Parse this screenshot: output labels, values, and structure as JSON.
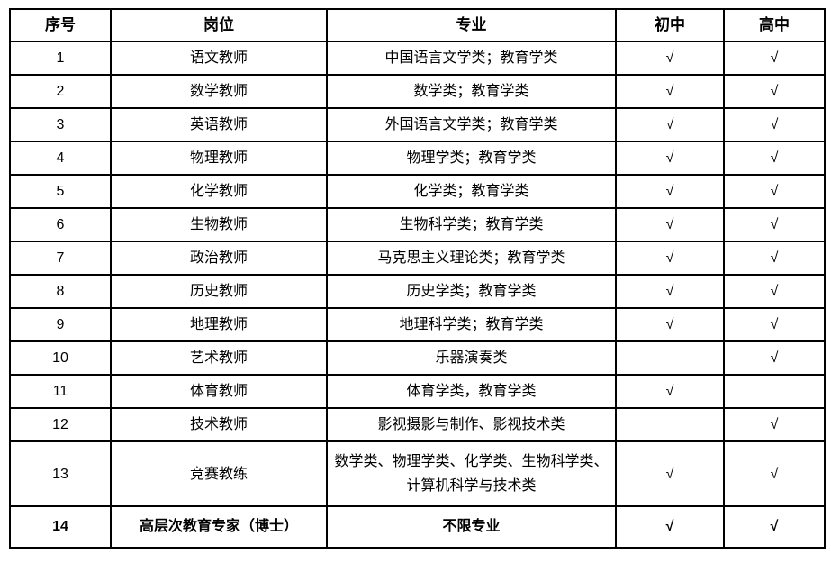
{
  "table": {
    "border_color": "#000000",
    "text_color": "#000000",
    "background_color": "#ffffff",
    "check_mark": "√",
    "columns": [
      {
        "key": "no",
        "label": "序号"
      },
      {
        "key": "position",
        "label": "岗位"
      },
      {
        "key": "major",
        "label": "专业"
      },
      {
        "key": "junior",
        "label": "初中"
      },
      {
        "key": "senior",
        "label": "高中"
      }
    ],
    "rows": [
      {
        "no": "1",
        "position": "语文教师",
        "major": "中国语言文学类；教育学类",
        "junior": "√",
        "senior": "√",
        "bold": false
      },
      {
        "no": "2",
        "position": "数学教师",
        "major": "数学类；教育学类",
        "junior": "√",
        "senior": "√",
        "bold": false
      },
      {
        "no": "3",
        "position": "英语教师",
        "major": "外国语言文学类；教育学类",
        "junior": "√",
        "senior": "√",
        "bold": false
      },
      {
        "no": "4",
        "position": "物理教师",
        "major": "物理学类；教育学类",
        "junior": "√",
        "senior": "√",
        "bold": false
      },
      {
        "no": "5",
        "position": "化学教师",
        "major": "化学类；教育学类",
        "junior": "√",
        "senior": "√",
        "bold": false
      },
      {
        "no": "6",
        "position": "生物教师",
        "major": "生物科学类；教育学类",
        "junior": "√",
        "senior": "√",
        "bold": false
      },
      {
        "no": "7",
        "position": "政治教师",
        "major": "马克思主义理论类；教育学类",
        "junior": "√",
        "senior": "√",
        "bold": false
      },
      {
        "no": "8",
        "position": "历史教师",
        "major": "历史学类；教育学类",
        "junior": "√",
        "senior": "√",
        "bold": false
      },
      {
        "no": "9",
        "position": "地理教师",
        "major": "地理科学类；教育学类",
        "junior": "√",
        "senior": "√",
        "bold": false
      },
      {
        "no": "10",
        "position": "艺术教师",
        "major": "乐器演奏类",
        "junior": "",
        "senior": "√",
        "bold": false
      },
      {
        "no": "11",
        "position": "体育教师",
        "major": "体育学类，教育学类",
        "junior": "√",
        "senior": "",
        "bold": false
      },
      {
        "no": "12",
        "position": "技术教师",
        "major": "影视摄影与制作、影视技术类",
        "junior": "",
        "senior": "√",
        "bold": false
      },
      {
        "no": "13",
        "position": "竞赛教练",
        "major": "数学类、物理学类、化学类、生物科学类、计算机科学与技术类",
        "junior": "√",
        "senior": "√",
        "bold": false
      },
      {
        "no": "14",
        "position": "高层次教育专家（博士）",
        "major": "不限专业",
        "junior": "√",
        "senior": "√",
        "bold": true
      }
    ]
  }
}
